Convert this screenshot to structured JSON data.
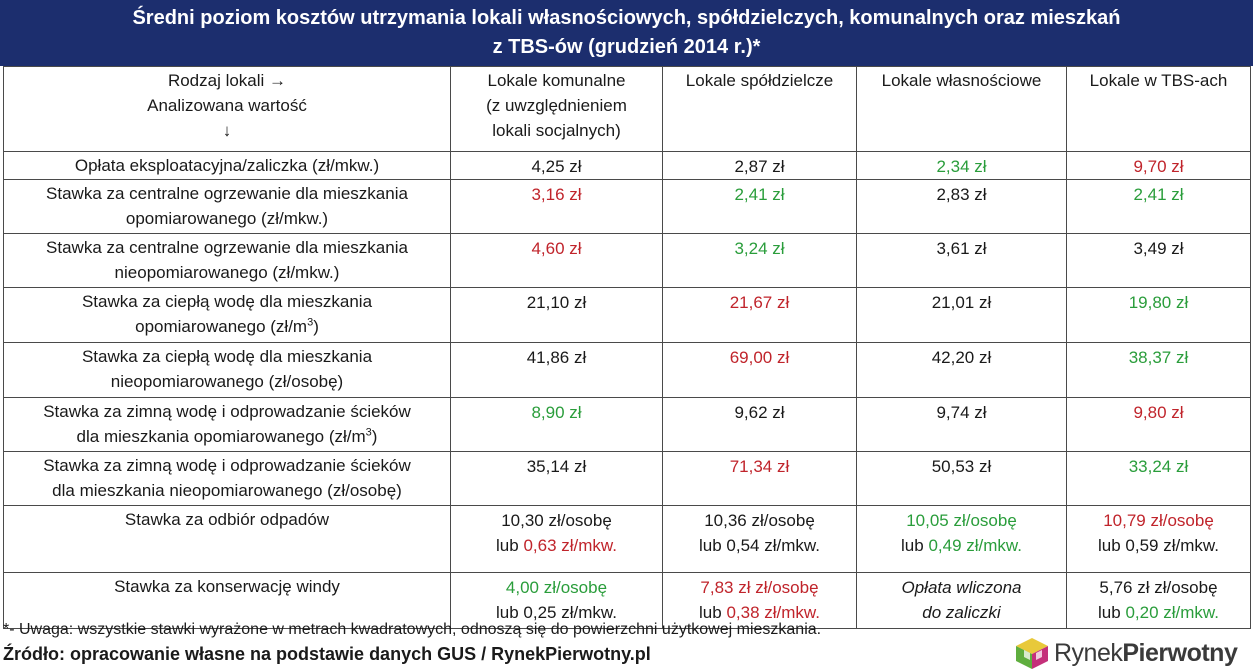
{
  "title": {
    "line1": "Średni poziom kosztów utrzymania lokali własnościowych, spółdzielczych, komunalnych oraz mieszkań",
    "line2": "z TBS-ów (grudzień 2014 r.)*"
  },
  "header": {
    "label": [
      "Rodzaj lokali →",
      "Analizowana wartość",
      "↓"
    ],
    "columns": [
      [
        "Lokale komunalne",
        "(z uwzględnieniem",
        "lokali socjalnych)"
      ],
      [
        "Lokale spółdzielcze"
      ],
      [
        "Lokale własnościowe"
      ],
      [
        "Lokale w TBS-ach"
      ]
    ]
  },
  "colors": {
    "red": "#c0242b",
    "green": "#2a9d3b",
    "header_bg": "#1c2e6e"
  },
  "rows": [
    {
      "label": [
        [
          "Opłata eksploatacyjna/zaliczka (zł/mkw.)"
        ]
      ],
      "cells": [
        [
          [
            {
              "text": "4,25 zł",
              "color": ""
            }
          ]
        ],
        [
          [
            {
              "text": "2,87 zł",
              "color": ""
            }
          ]
        ],
        [
          [
            {
              "text": "2,34 zł",
              "color": "green"
            }
          ]
        ],
        [
          [
            {
              "text": "9,70 zł",
              "color": "red"
            }
          ]
        ]
      ]
    },
    {
      "label": [
        [
          "Stawka za centralne ogrzewanie dla mieszkania"
        ],
        [
          "opomiarowanego (zł/mkw.)"
        ]
      ],
      "cells": [
        [
          [
            {
              "text": "3,16 zł",
              "color": "red"
            }
          ]
        ],
        [
          [
            {
              "text": "2,41 zł",
              "color": "green"
            }
          ]
        ],
        [
          [
            {
              "text": "2,83 zł",
              "color": ""
            }
          ]
        ],
        [
          [
            {
              "text": "2,41 zł",
              "color": "green"
            }
          ]
        ]
      ]
    },
    {
      "label": [
        [
          "Stawka za centralne ogrzewanie dla mieszkania"
        ],
        [
          "nieopomiarowanego (zł/mkw.)"
        ]
      ],
      "cells": [
        [
          [
            {
              "text": "4,60 zł",
              "color": "red"
            }
          ]
        ],
        [
          [
            {
              "text": "3,24 zł",
              "color": "green"
            }
          ]
        ],
        [
          [
            {
              "text": "3,61 zł",
              "color": ""
            }
          ]
        ],
        [
          [
            {
              "text": "3,49 zł",
              "color": ""
            }
          ]
        ]
      ]
    },
    {
      "label": [
        [
          "Stawka za ciepłą wodę dla mieszkania"
        ],
        [
          "opomiarowanego (zł/m",
          {
            "sup": "3"
          },
          ")"
        ]
      ],
      "cells": [
        [
          [
            {
              "text": "21,10 zł",
              "color": ""
            }
          ]
        ],
        [
          [
            {
              "text": "21,67 zł",
              "color": "red"
            }
          ]
        ],
        [
          [
            {
              "text": "21,01 zł",
              "color": ""
            }
          ]
        ],
        [
          [
            {
              "text": "19,80 zł",
              "color": "green"
            }
          ]
        ]
      ]
    },
    {
      "label": [
        [
          "Stawka za ciepłą wodę dla mieszkania"
        ],
        [
          "nieopomiarowanego (zł/osobę)"
        ]
      ],
      "cells": [
        [
          [
            {
              "text": "41,86 zł",
              "color": ""
            }
          ]
        ],
        [
          [
            {
              "text": "69,00 zł",
              "color": "red"
            }
          ]
        ],
        [
          [
            {
              "text": "42,20 zł",
              "color": ""
            }
          ]
        ],
        [
          [
            {
              "text": "38,37 zł",
              "color": "green"
            }
          ]
        ]
      ]
    },
    {
      "label": [
        [
          "Stawka za zimną wodę i odprowadzanie ścieków"
        ],
        [
          "dla mieszkania opomiarowanego (zł/m",
          {
            "sup": "3"
          },
          ")"
        ]
      ],
      "cells": [
        [
          [
            {
              "text": "8,90 zł",
              "color": "green"
            }
          ]
        ],
        [
          [
            {
              "text": "9,62 zł",
              "color": ""
            }
          ]
        ],
        [
          [
            {
              "text": "9,74 zł",
              "color": ""
            }
          ]
        ],
        [
          [
            {
              "text": "9,80 zł",
              "color": "red"
            }
          ]
        ]
      ]
    },
    {
      "label": [
        [
          "Stawka za zimną wodę i odprowadzanie ścieków"
        ],
        [
          "dla mieszkania nieopomiarowanego (zł/osobę)"
        ]
      ],
      "cells": [
        [
          [
            {
              "text": "35,14 zł",
              "color": ""
            }
          ]
        ],
        [
          [
            {
              "text": "71,34 zł",
              "color": "red"
            }
          ]
        ],
        [
          [
            {
              "text": "50,53 zł",
              "color": ""
            }
          ]
        ],
        [
          [
            {
              "text": "33,24 zł",
              "color": "green"
            }
          ]
        ]
      ]
    },
    {
      "label": [
        [
          "Stawka za odbiór odpadów"
        ]
      ],
      "cells": [
        [
          [
            {
              "text": "10,30 zł/osobę",
              "color": ""
            }
          ],
          [
            {
              "text": "lub ",
              "color": ""
            },
            {
              "text": "0,63 zł/mkw.",
              "color": "red"
            }
          ]
        ],
        [
          [
            {
              "text": "10,36 zł/osobę",
              "color": ""
            }
          ],
          [
            {
              "text": "lub 0,54 zł/mkw.",
              "color": ""
            }
          ]
        ],
        [
          [
            {
              "text": "10,05 zł/osobę",
              "color": "green"
            }
          ],
          [
            {
              "text": "lub ",
              "color": ""
            },
            {
              "text": "0,49 zł/mkw.",
              "color": "green"
            }
          ]
        ],
        [
          [
            {
              "text": "10,79 zł/osobę",
              "color": "red"
            }
          ],
          [
            {
              "text": "lub 0,59 zł/mkw.",
              "color": ""
            }
          ]
        ]
      ]
    },
    {
      "label": [
        [
          "Stawka za konserwację windy"
        ]
      ],
      "cells": [
        [
          [
            {
              "text": "4,00 zł/osobę",
              "color": "green"
            }
          ],
          [
            {
              "text": "lub 0,25 zł/mkw.",
              "color": ""
            }
          ]
        ],
        [
          [
            {
              "text": "7,83 zł zł/osobę",
              "color": "red"
            }
          ],
          [
            {
              "text": "lub ",
              "color": ""
            },
            {
              "text": "0,38 zł/mkw.",
              "color": "red"
            }
          ]
        ],
        [
          [
            {
              "text": "Opłata wliczona",
              "color": "",
              "italic": true
            }
          ],
          [
            {
              "text": "do zaliczki",
              "color": "",
              "italic": true
            }
          ]
        ],
        [
          [
            {
              "text": "5,76 zł zł/osobę",
              "color": ""
            }
          ],
          [
            {
              "text": "lub ",
              "color": ""
            },
            {
              "text": "0,20 zł/mkw.",
              "color": "green"
            }
          ]
        ]
      ]
    }
  ],
  "footnote": "*- Uwaga: wszystkie stawki wyrażone w metrach kwadratowych, odnoszą się do powierzchni użytkowej mieszkania.",
  "source": "Źródło: opracowanie własne na podstawie danych GUS / RynekPierwotny.pl",
  "logo": {
    "part1": "Rynek",
    "part2": "Pierwotny",
    "icon": "house-cube-icon"
  }
}
